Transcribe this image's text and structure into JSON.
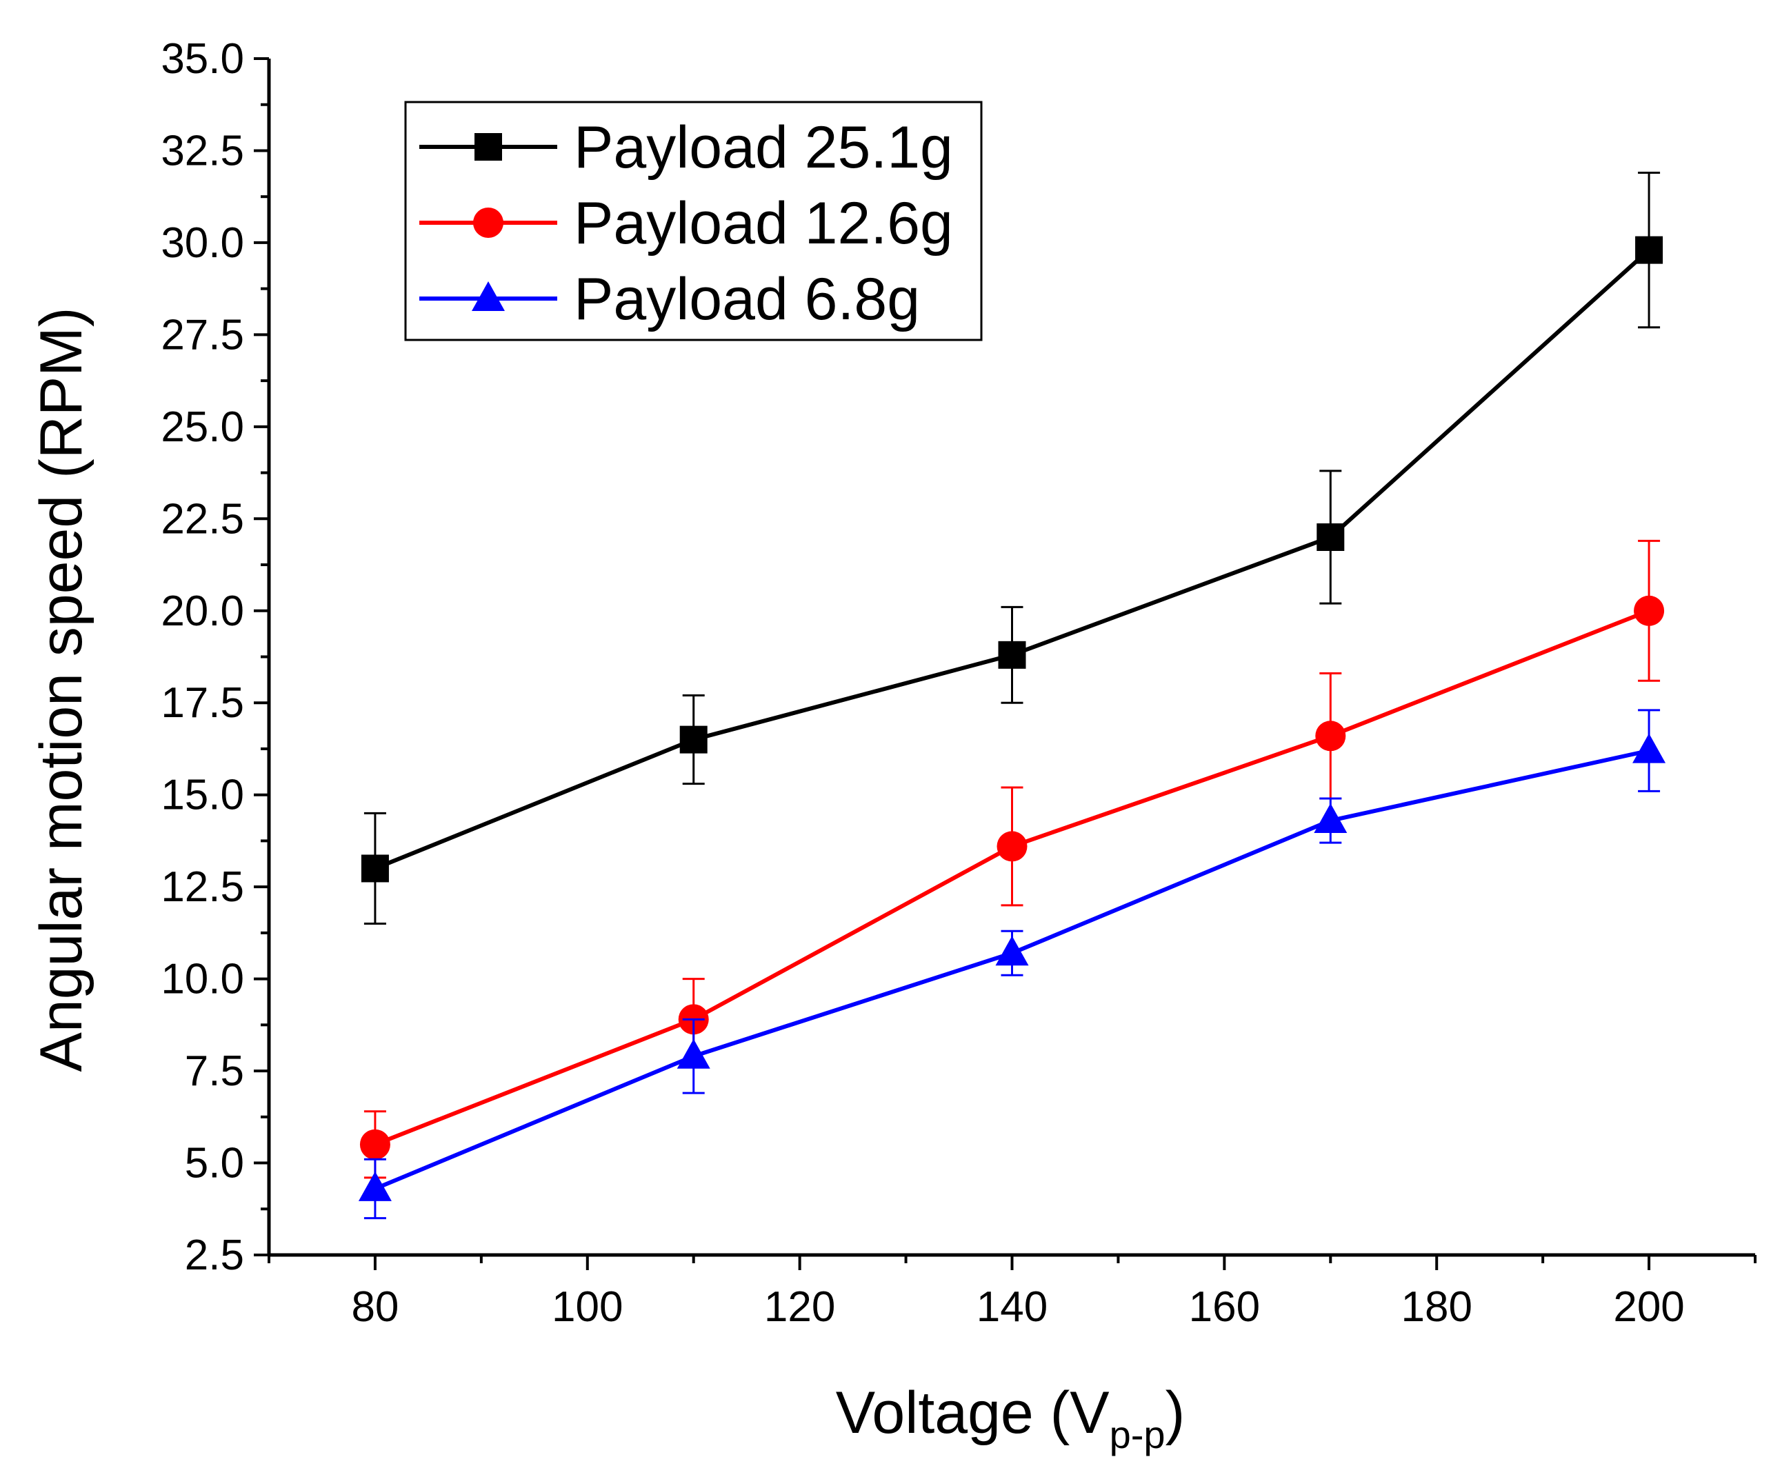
{
  "chart_data": {
    "type": "line",
    "title": "",
    "xlabel": "Voltage (V",
    "xlabel_subscript": "p-p",
    "xlabel_close": ")",
    "ylabel": "Angular motion speed (RPM)",
    "xlim": [
      70,
      210
    ],
    "ylim": [
      2.5,
      35.0
    ],
    "x_ticks": [
      80,
      100,
      120,
      140,
      160,
      180,
      200
    ],
    "x_tick_labels": [
      "80",
      "100",
      "120",
      "140",
      "160",
      "180",
      "200"
    ],
    "y_ticks": [
      2.5,
      5.0,
      7.5,
      10.0,
      12.5,
      15.0,
      17.5,
      20.0,
      22.5,
      25.0,
      27.5,
      30.0,
      32.5,
      35.0
    ],
    "y_tick_labels": [
      "2.5",
      "5.0",
      "7.5",
      "10.0",
      "12.5",
      "15.0",
      "17.5",
      "20.0",
      "22.5",
      "25.0",
      "27.5",
      "30.0",
      "32.5",
      "35.0"
    ],
    "grid": false,
    "legend_position": "top-left",
    "x": [
      80,
      110,
      140,
      170,
      200
    ],
    "series": [
      {
        "name": "Payload 25.1g",
        "color": "#000000",
        "marker": "square",
        "values": [
          13.0,
          16.5,
          18.8,
          22.0,
          29.8
        ],
        "errors": [
          1.5,
          1.2,
          1.3,
          1.8,
          2.1
        ]
      },
      {
        "name": "Payload 12.6g",
        "color": "#ff0000",
        "marker": "circle",
        "values": [
          5.5,
          8.9,
          13.6,
          16.6,
          20.0
        ],
        "errors": [
          0.9,
          1.1,
          1.6,
          1.7,
          1.9
        ]
      },
      {
        "name": "Payload 6.8g",
        "color": "#0000ff",
        "marker": "triangle",
        "values": [
          4.3,
          7.9,
          10.7,
          14.3,
          16.2
        ],
        "errors": [
          0.8,
          1.0,
          0.6,
          0.6,
          1.1
        ]
      }
    ]
  }
}
